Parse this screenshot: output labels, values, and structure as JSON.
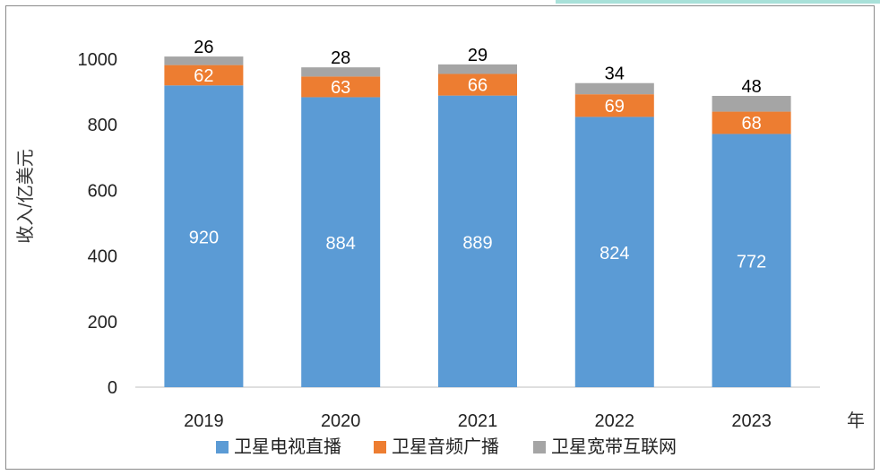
{
  "chart_data": {
    "type": "bar",
    "stacked": true,
    "categories": [
      "2019",
      "2020",
      "2021",
      "2022",
      "2023"
    ],
    "series": [
      {
        "name": "卫星电视直播",
        "values": [
          920,
          884,
          889,
          824,
          772
        ],
        "color": "#5b9bd5",
        "label_color": "#ffffff"
      },
      {
        "name": "卫星音频广播",
        "values": [
          62,
          63,
          66,
          69,
          68
        ],
        "color": "#ed7d31",
        "label_color": "#ffffff"
      },
      {
        "name": "卫星宽带互联网",
        "values": [
          26,
          28,
          29,
          34,
          48
        ],
        "color": "#a5a5a5",
        "label_color": "#000000"
      }
    ],
    "ylabel": "收入/亿美元",
    "xlabel": "年",
    "ylim": [
      0,
      1000
    ],
    "yticks": [
      0,
      200,
      400,
      600,
      800,
      1000
    ],
    "legend_position": "bottom",
    "grid": false
  }
}
